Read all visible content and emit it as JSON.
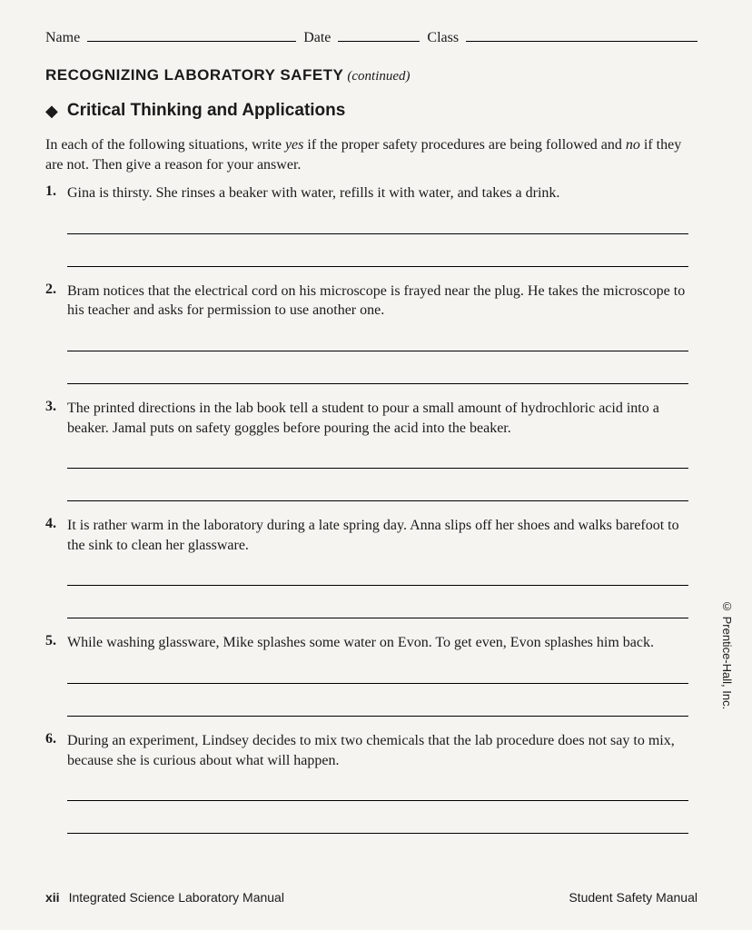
{
  "header": {
    "name_label": "Name",
    "date_label": "Date",
    "class_label": "Class"
  },
  "section": {
    "title": "RECOGNIZING LABORATORY SAFETY",
    "continued": "(continued)"
  },
  "subsection": {
    "diamond": "◆",
    "title": "Critical Thinking and Applications"
  },
  "instructions": {
    "part1": "In each of the following situations, write ",
    "yes": "yes",
    "part2": " if the proper safety procedures are being followed and ",
    "no": "no",
    "part3": " if they are not. Then give a reason for your answer."
  },
  "questions": [
    {
      "num": "1.",
      "text": "Gina is thirsty. She rinses a beaker with water, refills it with water, and takes a drink."
    },
    {
      "num": "2.",
      "text": "Bram notices that the electrical cord on his microscope is frayed near the plug. He takes the microscope to his teacher and asks for permission to use another one."
    },
    {
      "num": "3.",
      "text": "The printed directions in the lab book tell a student to pour a small amount of hydrochloric acid into a beaker. Jamal puts on safety goggles before pouring the acid into the beaker."
    },
    {
      "num": "4.",
      "text": "It is rather warm in the laboratory during a late spring day. Anna slips off her shoes and walks barefoot to the sink to clean her glassware."
    },
    {
      "num": "5.",
      "text": "While washing glassware, Mike splashes some water on Evon. To get even, Evon splashes him back."
    },
    {
      "num": "6.",
      "text": "During an experiment, Lindsey decides to mix two chemicals that the lab procedure does not say to mix, because she is curious about what will happen."
    }
  ],
  "footer": {
    "page": "xii",
    "left": "Integrated Science Laboratory Manual",
    "right": "Student Safety Manual"
  },
  "copyright": "© Prentice-Hall, Inc."
}
